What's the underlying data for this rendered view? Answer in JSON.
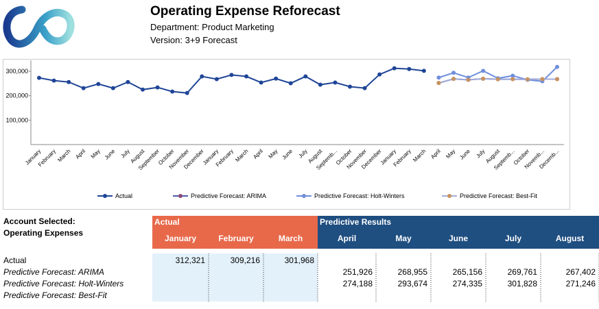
{
  "header": {
    "title": "Operating Expense Reforecast",
    "department": "Department: Product Marketing",
    "version": "Version: 3+9 Forecast"
  },
  "chart_data": {
    "type": "line",
    "categories": [
      "January",
      "February",
      "March",
      "April",
      "May",
      "June",
      "July",
      "August",
      "September",
      "October",
      "November",
      "December",
      "January",
      "February",
      "March",
      "April",
      "May",
      "June",
      "July",
      "August",
      "Septemb...",
      "October",
      "November",
      "December",
      "January",
      "February",
      "March",
      "April",
      "May",
      "June",
      "July",
      "August",
      "Septemb...",
      "October",
      "Novemb...",
      "Decemb..."
    ],
    "ylim": [
      0,
      345000
    ],
    "yticks": [
      {
        "value": 100000,
        "label": "100,000"
      },
      {
        "value": 200000,
        "label": "200,000"
      },
      {
        "value": 300000,
        "label": "300,000"
      }
    ],
    "grid": false,
    "legend": "bottom",
    "series": [
      {
        "name": "Actual",
        "color": "#1f4597",
        "marker": "#1f4597",
        "values": [
          273000,
          262000,
          256000,
          231000,
          248000,
          231000,
          256000,
          225000,
          234000,
          217000,
          211000,
          279000,
          268000,
          285000,
          279000,
          254000,
          270000,
          251000,
          279000,
          245000,
          254000,
          237000,
          231000,
          287000,
          312321,
          309216,
          301968,
          null,
          null,
          null,
          null,
          null,
          null,
          null,
          null,
          null
        ]
      },
      {
        "name": "Predictive Forecast: ARIMA",
        "color": "#4a5aa8",
        "marker": "#8c4a78",
        "values": [
          null,
          null,
          null,
          null,
          null,
          null,
          null,
          null,
          null,
          null,
          null,
          null,
          null,
          null,
          null,
          null,
          null,
          null,
          null,
          null,
          null,
          null,
          null,
          null,
          null,
          null,
          null,
          251926,
          268955,
          265156,
          269761,
          267402,
          268000,
          267000,
          268000,
          268000
        ]
      },
      {
        "name": "Predictive Forecast: Holt-Winters",
        "color": "#6f8fdc",
        "marker": "#6f8fdc",
        "values": [
          null,
          null,
          null,
          null,
          null,
          null,
          null,
          null,
          null,
          null,
          null,
          null,
          null,
          null,
          null,
          null,
          null,
          null,
          null,
          null,
          null,
          null,
          null,
          null,
          null,
          null,
          null,
          274188,
          293674,
          274335,
          301828,
          271246,
          282000,
          265000,
          259000,
          318000
        ]
      },
      {
        "name": "Predictive Forecast: Best-Fit",
        "color": "#a3acd9",
        "marker": "#c8935e",
        "values": [
          null,
          null,
          null,
          null,
          null,
          null,
          null,
          null,
          null,
          null,
          null,
          null,
          null,
          null,
          null,
          null,
          null,
          null,
          null,
          null,
          null,
          null,
          null,
          null,
          null,
          null,
          null,
          251926,
          268955,
          265156,
          269761,
          267402,
          268000,
          267000,
          268000,
          268000
        ]
      }
    ]
  },
  "table": {
    "account": [
      "Account Selected:",
      "Operating Expenses"
    ],
    "groups": [
      "Actual",
      "Predictive Results"
    ],
    "columns": [
      "January",
      "February",
      "March",
      "April",
      "May",
      "June",
      "July",
      "August"
    ],
    "rows": [
      {
        "label": "Actual",
        "values": [
          "312,321",
          "309,216",
          "301,968",
          null,
          null,
          null,
          null,
          null
        ]
      },
      {
        "label": "Predictive Forecast: ARIMA",
        "values": [
          null,
          null,
          null,
          "251,926",
          "268,955",
          "265,156",
          "269,761",
          "267,402"
        ]
      },
      {
        "label": "Predictive Forecast: Holt-Winters",
        "values": [
          null,
          null,
          null,
          "274,188",
          "293,674",
          "274,335",
          "301,828",
          "271,246"
        ]
      },
      {
        "label": "Predictive Forecast: Best-Fit",
        "values": [
          null,
          null,
          null,
          null,
          null,
          null,
          null,
          null
        ]
      }
    ]
  }
}
